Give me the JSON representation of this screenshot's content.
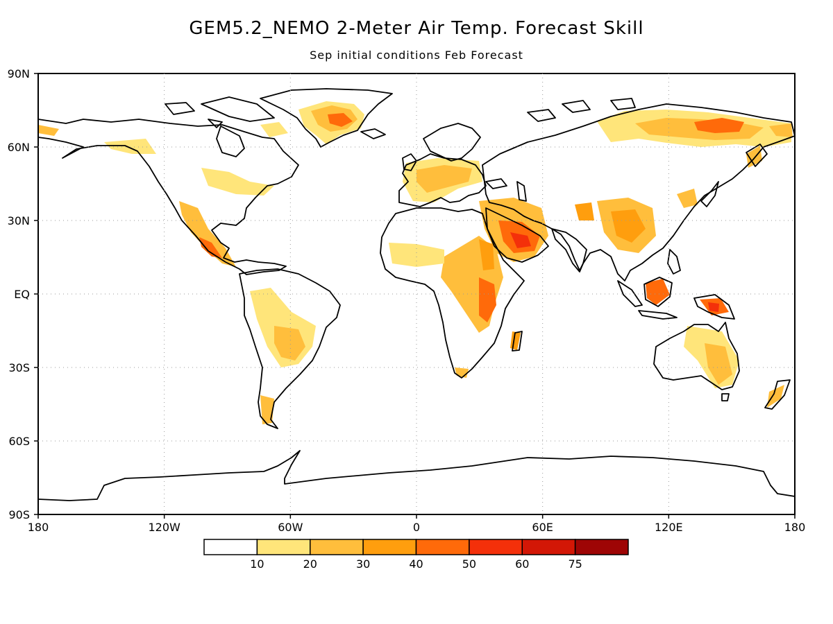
{
  "header": {
    "title": "GEM5.2_NEMO 2-Meter Air Temp. Forecast Skill",
    "subtitle": "Sep initial conditions  Feb Forecast"
  },
  "map": {
    "projection": "equirectangular",
    "lon_range": [
      -180,
      180
    ],
    "lat_range": [
      -90,
      90
    ],
    "grid": true,
    "lat_ticks": [
      {
        "lat": 90,
        "label": "90N"
      },
      {
        "lat": 60,
        "label": "60N"
      },
      {
        "lat": 30,
        "label": "30N"
      },
      {
        "lat": 0,
        "label": "EQ"
      },
      {
        "lat": -30,
        "label": "30S"
      },
      {
        "lat": -60,
        "label": "60S"
      },
      {
        "lat": -90,
        "label": "90S"
      }
    ],
    "lon_ticks": [
      {
        "lon": -180,
        "label": "180"
      },
      {
        "lon": -120,
        "label": "120W"
      },
      {
        "lon": -60,
        "label": "60W"
      },
      {
        "lon": 0,
        "label": "0"
      },
      {
        "lon": 60,
        "label": "60E"
      },
      {
        "lon": 120,
        "label": "120E"
      },
      {
        "lon": 180,
        "label": "180"
      }
    ]
  },
  "colorbar": {
    "bins": [
      "#ffffff",
      "#ffe57a",
      "#ffbe3c",
      "#ff9e0e",
      "#ff6a0a",
      "#f4300a",
      "#d31706",
      "#9e0505"
    ],
    "labels": [
      "10",
      "20",
      "30",
      "40",
      "50",
      "60",
      "75"
    ]
  },
  "colors": {
    "skill_lt_10": "#ffffff",
    "skill_10_20": "#ffe57a",
    "skill_20_30": "#ffbe3c",
    "skill_30_40": "#ff9e0e",
    "skill_40_50": "#ff6a0a",
    "skill_50_60": "#f4300a",
    "skill_60_75": "#d31706",
    "skill_gt_75": "#9e0505"
  }
}
